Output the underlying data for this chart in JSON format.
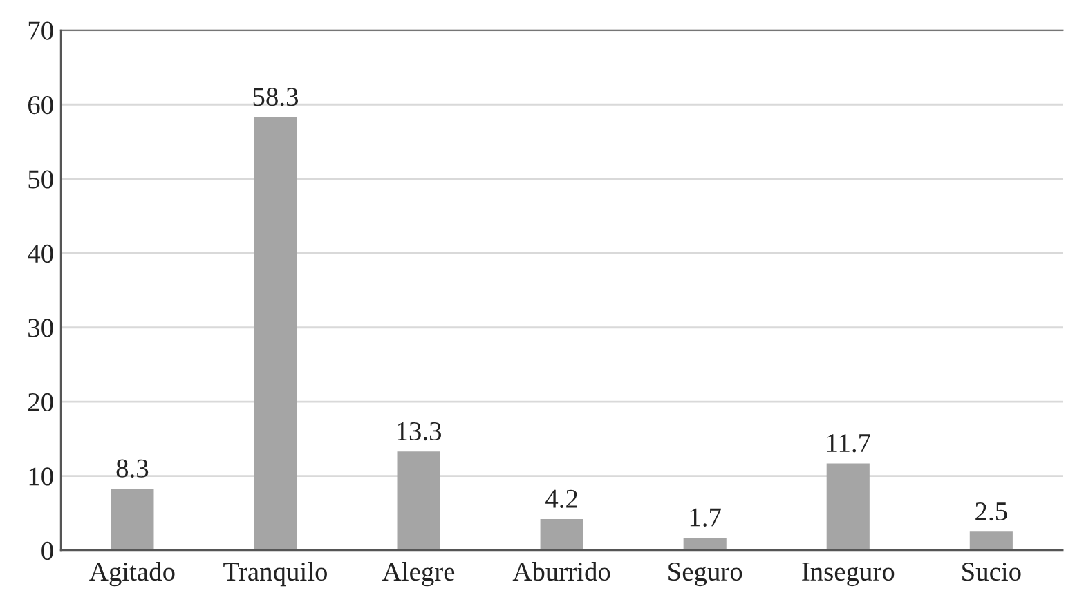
{
  "chart_data": {
    "type": "bar",
    "categories": [
      "Agitado",
      "Tranquilo",
      "Alegre",
      "Aburrido",
      "Seguro",
      "Inseguro",
      "Sucio"
    ],
    "values": [
      8.3,
      58.3,
      13.3,
      4.2,
      1.7,
      11.7,
      2.5
    ],
    "color": "#a5a5a5",
    "ylim": [
      0,
      70
    ],
    "yticks": [
      0,
      10,
      20,
      30,
      40,
      50,
      60,
      70
    ],
    "grid": "y",
    "data_labels": true
  }
}
